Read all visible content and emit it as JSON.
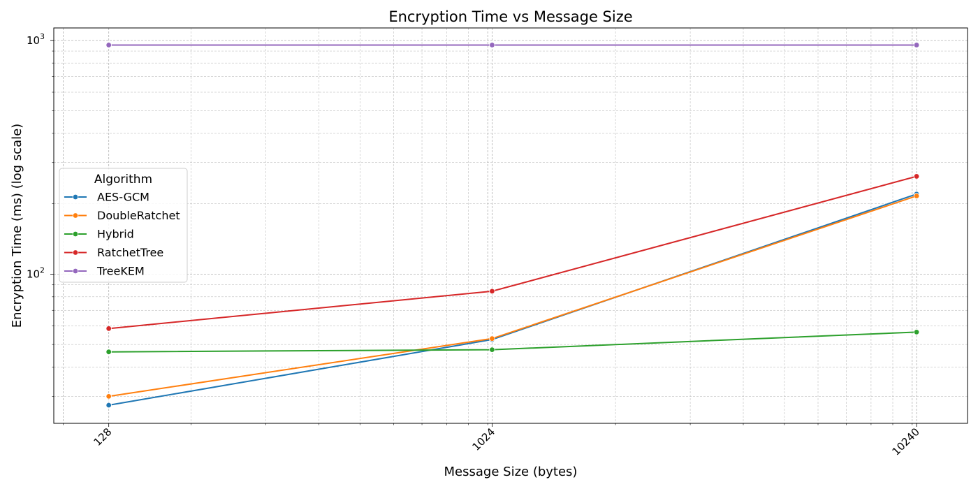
{
  "chart_data": {
    "type": "line",
    "title": "Encryption Time vs Message Size",
    "xlabel": "Message Size (bytes)",
    "ylabel": "Encryption Time (ms) (log scale)",
    "x_scale": "log",
    "y_scale": "log",
    "x": [
      128,
      1024,
      10240
    ],
    "x_tick_labels": [
      "128",
      "1024",
      "10240"
    ],
    "xlim": [
      95,
      13500
    ],
    "ylim": [
      23,
      1130
    ],
    "y_major_ticks": [
      {
        "value": 100,
        "base": "10",
        "exp": "2"
      },
      {
        "value": 1000,
        "base": "10",
        "exp": "3"
      }
    ],
    "grid": true,
    "legend": {
      "title": "Algorithm",
      "placement": "center-left"
    },
    "series": [
      {
        "name": "AES-GCM",
        "color": "#1f77b4",
        "values": [
          27.5,
          52.5,
          220
        ]
      },
      {
        "name": "DoubleRatchet",
        "color": "#ff7f0e",
        "values": [
          30,
          53,
          216
        ]
      },
      {
        "name": "Hybrid",
        "color": "#2ca02c",
        "values": [
          46.5,
          47.5,
          56.5
        ]
      },
      {
        "name": "RatchetTree",
        "color": "#d62728",
        "values": [
          58.5,
          84.5,
          262
        ]
      },
      {
        "name": "TreeKEM",
        "color": "#9467bd",
        "values": [
          955,
          955,
          955
        ]
      }
    ]
  }
}
